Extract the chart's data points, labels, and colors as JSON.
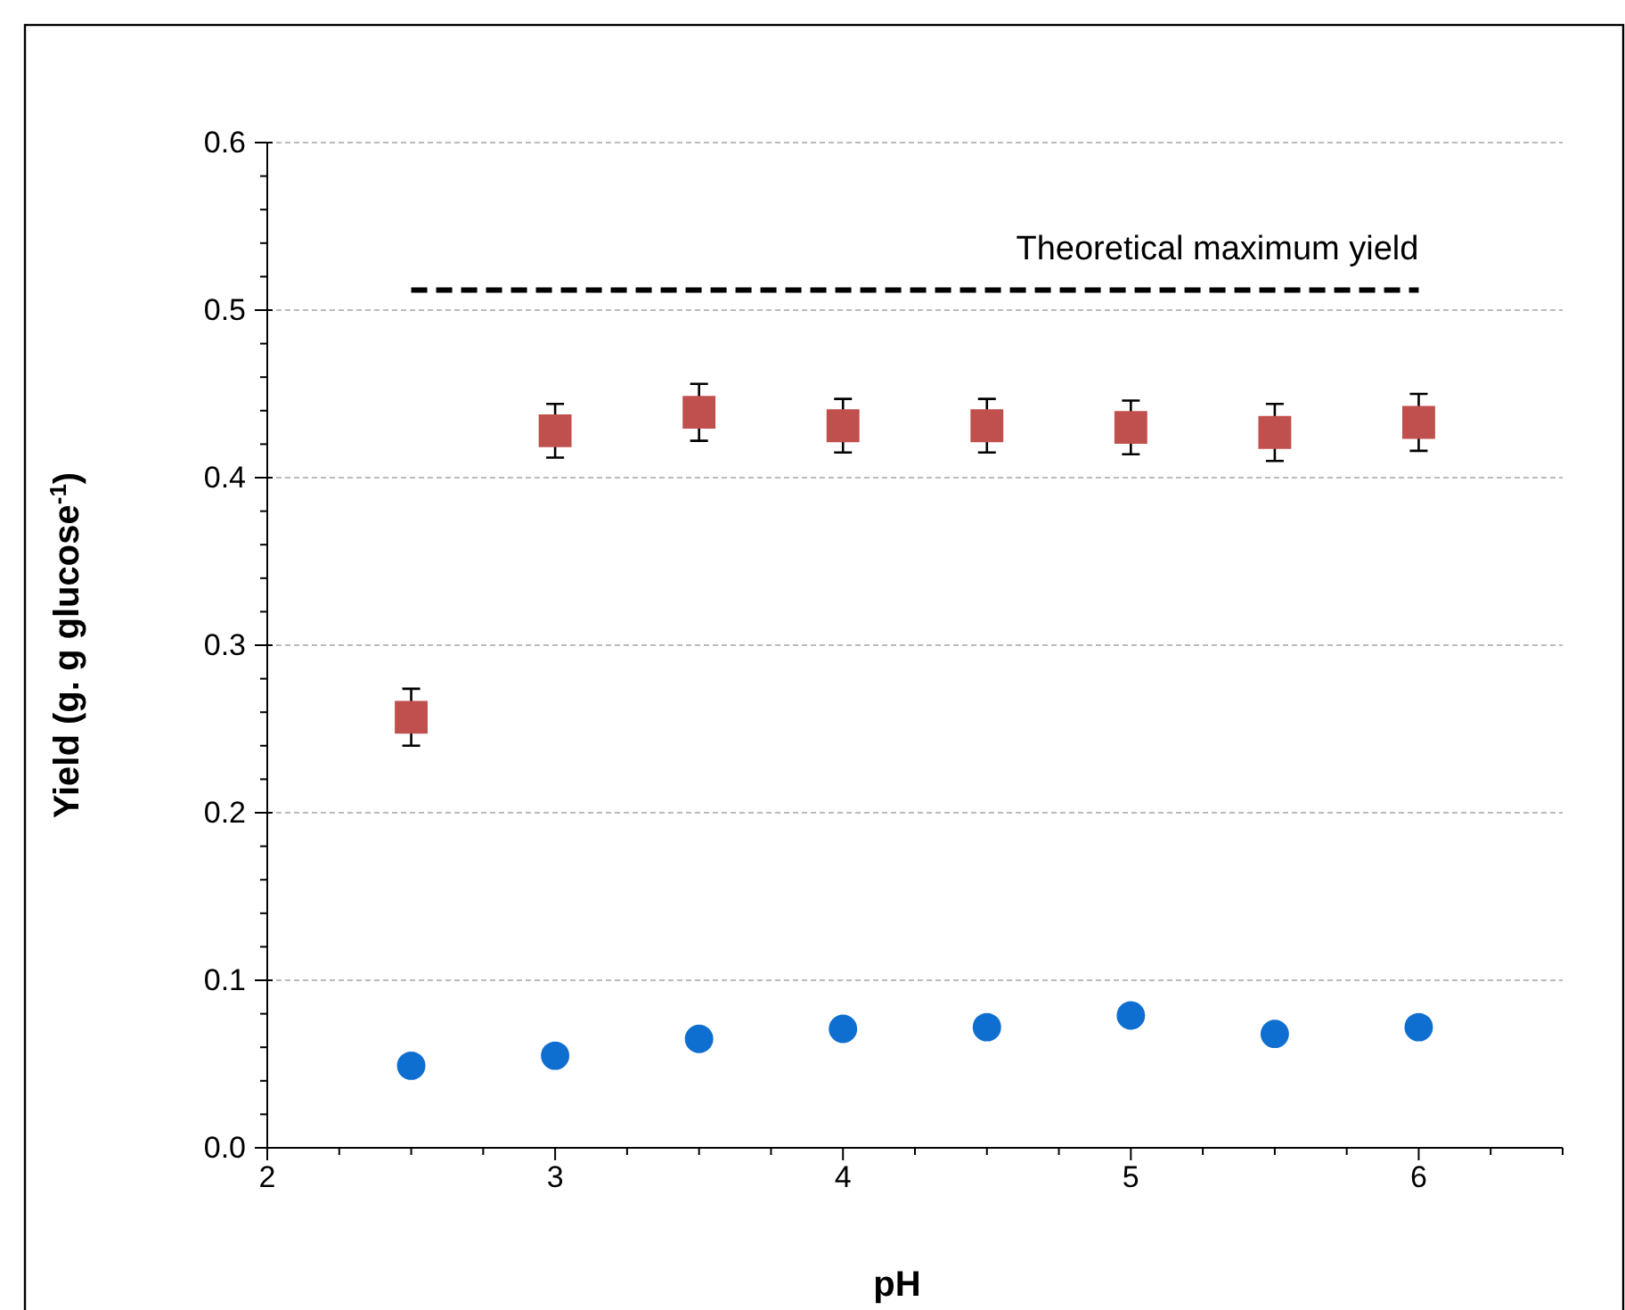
{
  "chart_data": {
    "type": "scatter",
    "xlabel": "pH",
    "ylabel": "Yield (g. g glucose$^{-1}$)",
    "xlim": [
      2,
      6.5
    ],
    "ylim": [
      0,
      0.6
    ],
    "xticks": [
      2,
      {
        "value": 2.25,
        "label": null
      },
      {
        "value": 2.5,
        "label": null
      },
      {
        "value": 2.75,
        "label": null
      },
      3,
      {
        "value": 3.25,
        "label": null
      },
      {
        "value": 3.5,
        "label": null
      },
      {
        "value": 3.75,
        "label": null
      },
      4,
      {
        "value": 4.25,
        "label": null
      },
      {
        "value": 4.5,
        "label": null
      },
      {
        "value": 4.75,
        "label": null
      },
      5,
      {
        "value": 5.25,
        "label": null
      },
      {
        "value": 5.5,
        "label": null
      },
      {
        "value": 5.75,
        "label": null
      },
      6,
      {
        "value": 6.25,
        "label": null
      },
      {
        "value": 6.5,
        "label": null
      }
    ],
    "yticks": [
      {
        "value": 0,
        "label": "0.0"
      },
      {
        "value": 0.02,
        "label": null
      },
      {
        "value": 0.04,
        "label": null
      },
      {
        "value": 0.06,
        "label": null
      },
      {
        "value": 0.08,
        "label": null
      },
      0.1,
      {
        "value": 0.12,
        "label": null
      },
      {
        "value": 0.14,
        "label": null
      },
      {
        "value": 0.16,
        "label": null
      },
      {
        "value": 0.18,
        "label": null
      },
      0.2,
      {
        "value": 0.22,
        "label": null
      },
      {
        "value": 0.24,
        "label": null
      },
      {
        "value": 0.26,
        "label": null
      },
      {
        "value": 0.28,
        "label": null
      },
      0.3,
      {
        "value": 0.32,
        "label": null
      },
      {
        "value": 0.34,
        "label": null
      },
      {
        "value": 0.36,
        "label": null
      },
      {
        "value": 0.38,
        "label": null
      },
      0.4,
      {
        "value": 0.42,
        "label": null
      },
      {
        "value": 0.44,
        "label": null
      },
      {
        "value": 0.46,
        "label": null
      },
      {
        "value": 0.48,
        "label": null
      },
      0.5,
      {
        "value": 0.52,
        "label": null
      },
      {
        "value": 0.54,
        "label": null
      },
      {
        "value": 0.56,
        "label": null
      },
      {
        "value": 0.58,
        "label": null
      },
      0.6
    ],
    "grid": "y",
    "series": [
      {
        "marker": "square",
        "color": "#c0504d",
        "x": [
          2.5,
          3,
          3.5,
          4,
          4.5,
          5,
          5.5,
          6
        ],
        "values": [
          0.257,
          0.428,
          0.439,
          0.431,
          0.431,
          0.43,
          0.427,
          0.433
        ],
        "errors": [
          0.017,
          0.016,
          0.017,
          0.016,
          0.016,
          0.016,
          0.017,
          0.017
        ]
      },
      {
        "marker": "circle",
        "color": "#0f6fd0",
        "x": [
          2.5,
          3,
          3.5,
          4,
          4.5,
          5,
          5.5,
          6
        ],
        "values": [
          0.049,
          0.055,
          0.065,
          0.071,
          0.072,
          0.079,
          0.068,
          0.072
        ]
      },
      {
        "type": "line",
        "name": "Theoretical maximum yield",
        "color": "#000000",
        "line_style": "dashed",
        "marker": "none",
        "x": [
          2.5,
          6
        ],
        "values": [
          0.512,
          0.512
        ]
      }
    ]
  }
}
